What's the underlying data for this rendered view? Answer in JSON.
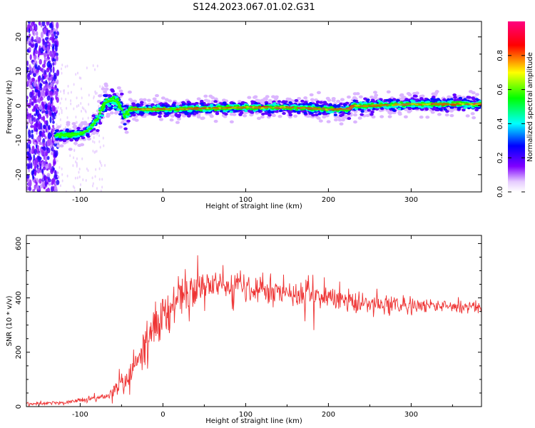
{
  "title": "S124.2023.067.01.02.G31",
  "chart_data": [
    {
      "type": "heatmap",
      "xlabel": "Height of straight line (km)",
      "ylabel": "Frequency (Hz)",
      "xlim": [
        -165,
        385
      ],
      "ylim": [
        -25,
        24.5
      ],
      "xticks": [
        -100,
        0,
        100,
        200,
        300
      ],
      "yticks": [
        -20,
        -10,
        0,
        10,
        20
      ],
      "colorbar": {
        "label": "Normalized spectral amplitude",
        "range": [
          0.0,
          1.0
        ],
        "ticks": [
          0.0,
          0.2,
          0.4,
          0.6,
          0.8
        ],
        "colors": [
          "#ffffff",
          "#e6ccff",
          "#8000ff",
          "#0000ff",
          "#00ffff",
          "#00ff00",
          "#ffff00",
          "#ff0000",
          "#ff0080"
        ]
      },
      "ridge": {
        "x": [
          -130,
          -110,
          -100,
          -90,
          -80,
          -70,
          -60,
          -55,
          -50,
          -45,
          -40,
          -30,
          0,
          100,
          150,
          200,
          225,
          230,
          250,
          300,
          385
        ],
        "y": [
          -8.5,
          -8.5,
          -8,
          -7,
          -4,
          1,
          2,
          1,
          -1,
          -3,
          -1,
          -1,
          -1,
          -0.5,
          -0.5,
          -1,
          -1,
          0,
          0,
          0.5,
          0.5
        ],
        "peak_amplitude": 1.0
      },
      "noise_region": {
        "x_range": [
          -165,
          -127
        ],
        "y_range": [
          -25,
          24.5
        ]
      },
      "grid": false
    },
    {
      "type": "line",
      "xlabel": "Height of straight line (km)",
      "ylabel": "SNR (10 * v/v)",
      "xlim": [
        -165,
        385
      ],
      "ylim": [
        0,
        630
      ],
      "xticks": [
        -100,
        0,
        100,
        200,
        300
      ],
      "yticks": [
        0,
        200,
        400,
        600
      ],
      "series": [
        {
          "color": "#ee3333",
          "envelope": {
            "x": [
              -165,
              -120,
              -100,
              -80,
              -65,
              -55,
              -45,
              -35,
              -20,
              -5,
              10,
              25,
              40,
              60,
              80,
              100,
              120,
              140,
              160,
              180,
              200,
              220,
              240,
              260,
              300,
              340,
              385
            ],
            "mean": [
              10,
              15,
              25,
              30,
              40,
              80,
              90,
              150,
              230,
              320,
              380,
              420,
              440,
              450,
              450,
              440,
              430,
              425,
              420,
              410,
              400,
              390,
              380,
              375,
              370,
              370,
              365
            ],
            "spread": [
              8,
              8,
              10,
              12,
              20,
              40,
              60,
              70,
              90,
              90,
              80,
              80,
              70,
              70,
              70,
              70,
              65,
              60,
              60,
              55,
              55,
              50,
              45,
              40,
              35,
              30,
              25
            ]
          }
        }
      ],
      "grid": false
    }
  ]
}
